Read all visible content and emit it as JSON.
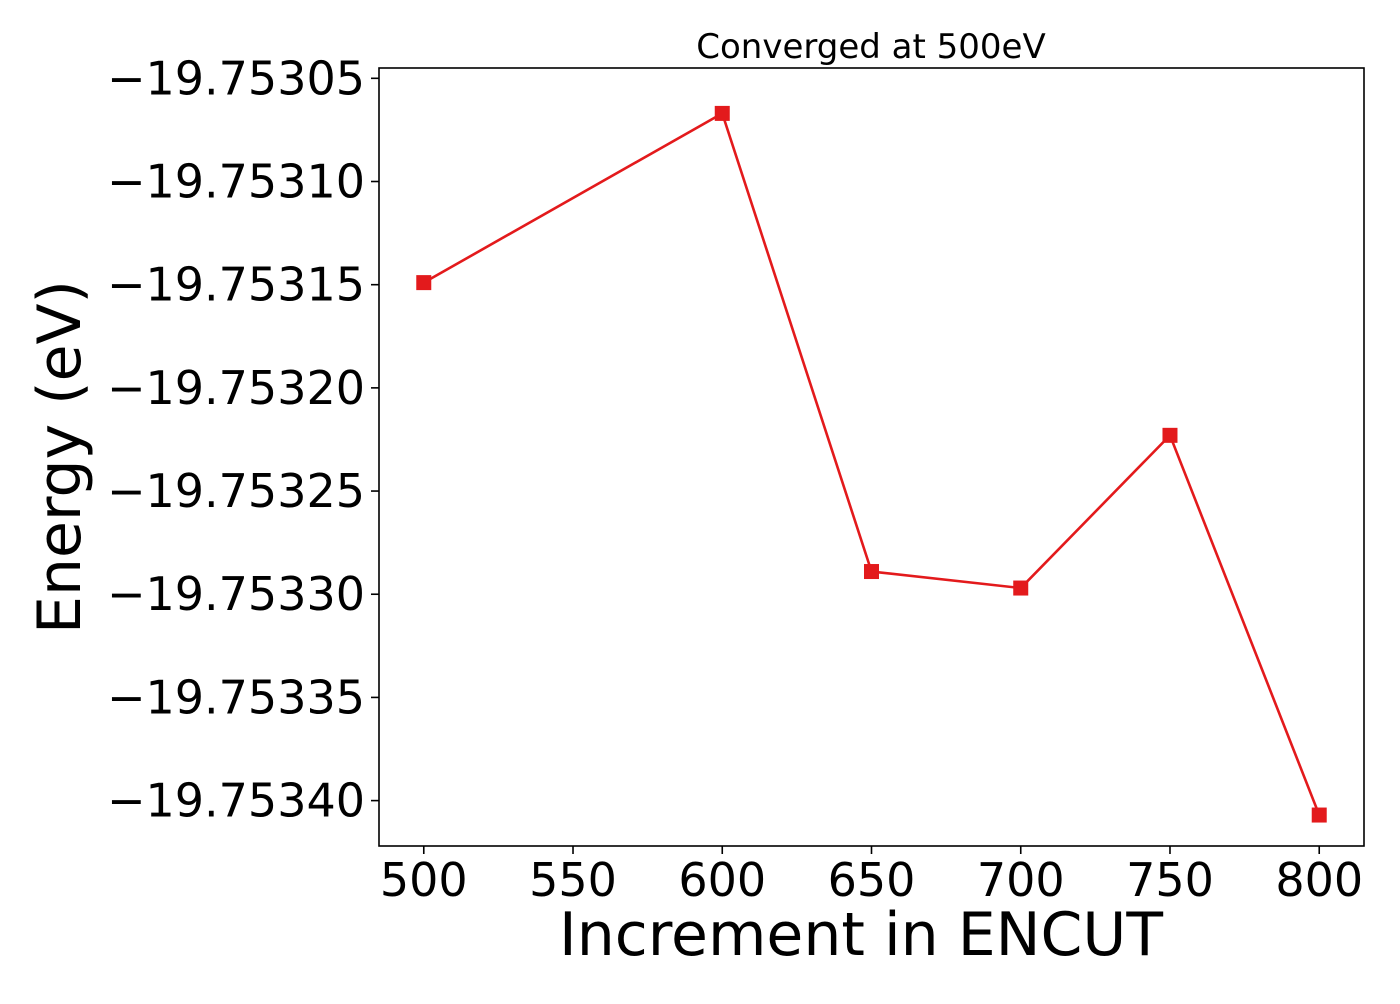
{
  "chart_data": {
    "type": "line",
    "title": "Converged at 500eV",
    "xlabel": "Increment in ENCUT",
    "ylabel": "Energy (eV)",
    "x": [
      500,
      600,
      650,
      700,
      750,
      800
    ],
    "xticks": [
      500,
      550,
      600,
      650,
      700,
      750,
      800
    ],
    "xtick_labels": [
      "500",
      "550",
      "600",
      "650",
      "700",
      "750",
      "800"
    ],
    "xlim": [
      485,
      815
    ],
    "yticks": [
      -19.75305,
      -19.7531,
      -19.75315,
      -19.7532,
      -19.75325,
      -19.7533,
      -19.75335,
      -19.7534
    ],
    "ytick_labels": [
      "−19.75305",
      "−19.75310",
      "−19.75315",
      "−19.75320",
      "−19.75325",
      "−19.75330",
      "−19.75335",
      "−19.75340"
    ],
    "ylim": [
      -19.753422,
      -19.753045
    ],
    "grid": false,
    "legend": "none",
    "series": [
      {
        "x": [
          500,
          600,
          650,
          700,
          750,
          800
        ],
        "values": [
          -19.753149,
          -19.753067,
          -19.753289,
          -19.753297,
          -19.753223,
          -19.753407
        ],
        "color": "#e31a1c",
        "marker": "square"
      }
    ]
  }
}
